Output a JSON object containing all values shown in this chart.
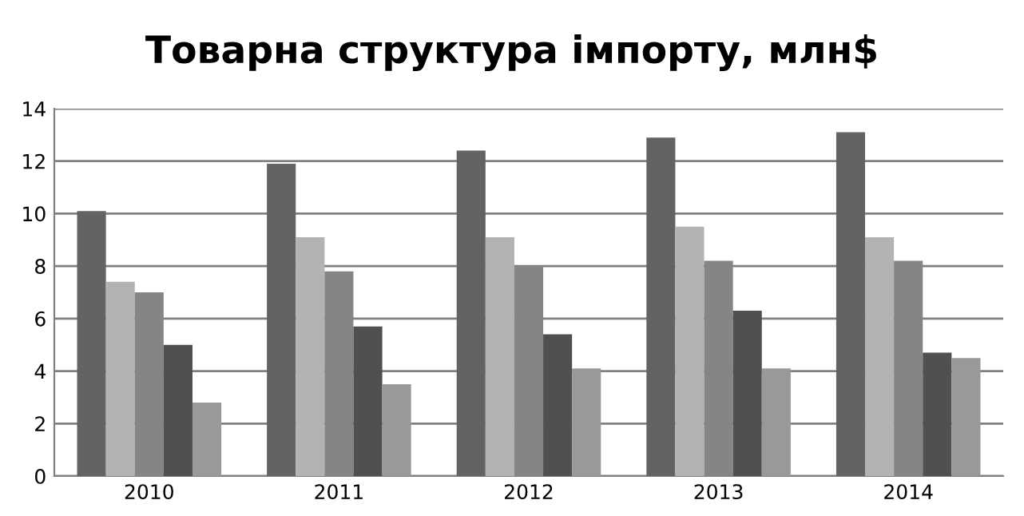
{
  "chart_data": {
    "type": "bar",
    "title": "Товарна структура імпорту, млн$",
    "categories": [
      "2010",
      "2011",
      "2012",
      "2013",
      "2014"
    ],
    "series": [
      {
        "color": "#636363",
        "values": [
          10.1,
          11.9,
          12.4,
          12.9,
          13.1
        ]
      },
      {
        "color": "#b3b3b3",
        "values": [
          7.4,
          9.1,
          9.1,
          9.5,
          9.1
        ]
      },
      {
        "color": "#858585",
        "values": [
          7.0,
          7.8,
          8.0,
          8.2,
          8.2
        ]
      },
      {
        "color": "#505050",
        "values": [
          5.0,
          5.7,
          5.4,
          6.3,
          4.7
        ]
      },
      {
        "color": "#999999",
        "values": [
          2.8,
          3.5,
          4.1,
          4.1,
          4.5
        ]
      }
    ],
    "ylim": [
      0,
      14
    ],
    "yticks": [
      0,
      2,
      4,
      6,
      8,
      10,
      12,
      14
    ],
    "grid": "y",
    "legend": false
  }
}
